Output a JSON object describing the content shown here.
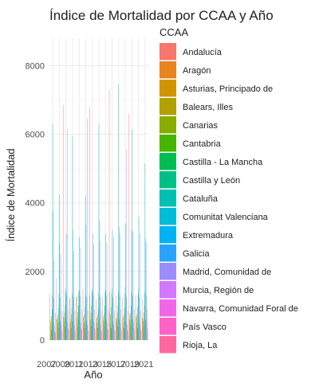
{
  "chart_data": {
    "type": "bar",
    "title": "Índice de Mortalidad por CCAA y Año",
    "xlabel": "Año",
    "ylabel": "Índice de Mortalidad",
    "legend_title": "CCAA",
    "legend_position": "right",
    "grid": true,
    "ylim": [
      0,
      8800
    ],
    "yticks": [
      0,
      2000,
      4000,
      6000,
      8000
    ],
    "xtick_labels": [
      "2007",
      "2009",
      "2011",
      "2013",
      "2015",
      "2017",
      "2019",
      "2021"
    ],
    "categories": [
      "2007",
      "2008",
      "2009",
      "2010",
      "2011",
      "2012",
      "2013",
      "2014",
      "2015",
      "2016",
      "2017",
      "2018",
      "2019",
      "2020",
      "2021"
    ],
    "series": [
      {
        "name": "Andalucía",
        "color": "#F8766D",
        "values": [
          1350,
          1800,
          6850,
          1200,
          1250,
          1500,
          6800,
          1200,
          1250,
          7300,
          1300,
          1250,
          6600,
          1300,
          1200
        ]
      },
      {
        "name": "Aragón",
        "color": "#E7851E",
        "values": [
          600,
          650,
          700,
          1250,
          650,
          700,
          1300,
          650,
          700,
          800,
          650,
          700,
          750,
          700,
          650
        ]
      },
      {
        "name": "Asturias, Principado de",
        "color": "#D09400",
        "values": [
          550,
          600,
          650,
          600,
          1300,
          650,
          600,
          650,
          600,
          1400,
          600,
          650,
          600,
          650,
          600
        ]
      },
      {
        "name": "Balears, Illes",
        "color": "#B2A100",
        "values": [
          450,
          500,
          550,
          500,
          550,
          500,
          550,
          500,
          550,
          500,
          550,
          500,
          550,
          500,
          550
        ]
      },
      {
        "name": "Canarias",
        "color": "#89AC00",
        "values": [
          700,
          750,
          800,
          750,
          800,
          750,
          800,
          750,
          800,
          750,
          800,
          750,
          800,
          750,
          800
        ]
      },
      {
        "name": "Cantabria",
        "color": "#45B500",
        "values": [
          300,
          350,
          400,
          350,
          400,
          350,
          400,
          350,
          400,
          350,
          400,
          350,
          400,
          350,
          400
        ]
      },
      {
        "name": "Castilla - La Mancha",
        "color": "#00BC51",
        "values": [
          900,
          950,
          1000,
          950,
          1000,
          950,
          1000,
          950,
          1000,
          950,
          1000,
          950,
          1000,
          950,
          1000
        ]
      },
      {
        "name": "Castilla y León",
        "color": "#00C087",
        "values": [
          1300,
          1350,
          1400,
          1350,
          1400,
          1350,
          1400,
          1350,
          1400,
          1350,
          1400,
          1350,
          1400,
          1350,
          1400
        ]
      },
      {
        "name": "Cataluña",
        "color": "#00C0B2",
        "values": [
          6300,
          4250,
          1500,
          5950,
          1450,
          4200,
          1500,
          6300,
          1450,
          1500,
          7450,
          1550,
          6150,
          1500,
          5150
        ]
      },
      {
        "name": "Comunitat Valenciana",
        "color": "#00BCD6",
        "values": [
          3750,
          2800,
          3100,
          3200,
          3000,
          3350,
          3100,
          3500,
          3100,
          3200,
          3300,
          3400,
          3200,
          3600,
          2950
        ]
      },
      {
        "name": "Extremadura",
        "color": "#00B3F2",
        "values": [
          500,
          550,
          600,
          550,
          600,
          550,
          600,
          550,
          600,
          550,
          600,
          550,
          600,
          550,
          600
        ]
      },
      {
        "name": "Galicia",
        "color": "#29A3FF",
        "values": [
          1200,
          1250,
          1300,
          1250,
          1300,
          1250,
          1300,
          1250,
          1300,
          1250,
          1300,
          1250,
          1300,
          1250,
          1300
        ]
      },
      {
        "name": "Madrid, Comunidad de",
        "color": "#9C8DFF",
        "values": [
          2300,
          2500,
          6150,
          2600,
          2700,
          6450,
          2800,
          2900,
          2850,
          3000,
          3100,
          5550,
          3150,
          3100,
          2850
        ]
      },
      {
        "name": "Murcia, Región de",
        "color": "#D277FF",
        "values": [
          400,
          450,
          500,
          450,
          500,
          450,
          500,
          450,
          500,
          450,
          500,
          450,
          500,
          450,
          500
        ]
      },
      {
        "name": "Navarra, Comunidad Foral de",
        "color": "#F166E8",
        "values": [
          250,
          300,
          350,
          300,
          350,
          300,
          350,
          300,
          350,
          300,
          350,
          300,
          350,
          300,
          350
        ]
      },
      {
        "name": "País Vasco",
        "color": "#FF61C7",
        "values": [
          800,
          850,
          900,
          850,
          900,
          850,
          900,
          850,
          900,
          850,
          900,
          850,
          900,
          850,
          900
        ]
      },
      {
        "name": "Rioja, La",
        "color": "#FF689F",
        "values": [
          200,
          250,
          300,
          250,
          300,
          250,
          300,
          250,
          300,
          250,
          300,
          250,
          300,
          250,
          300
        ]
      }
    ]
  }
}
